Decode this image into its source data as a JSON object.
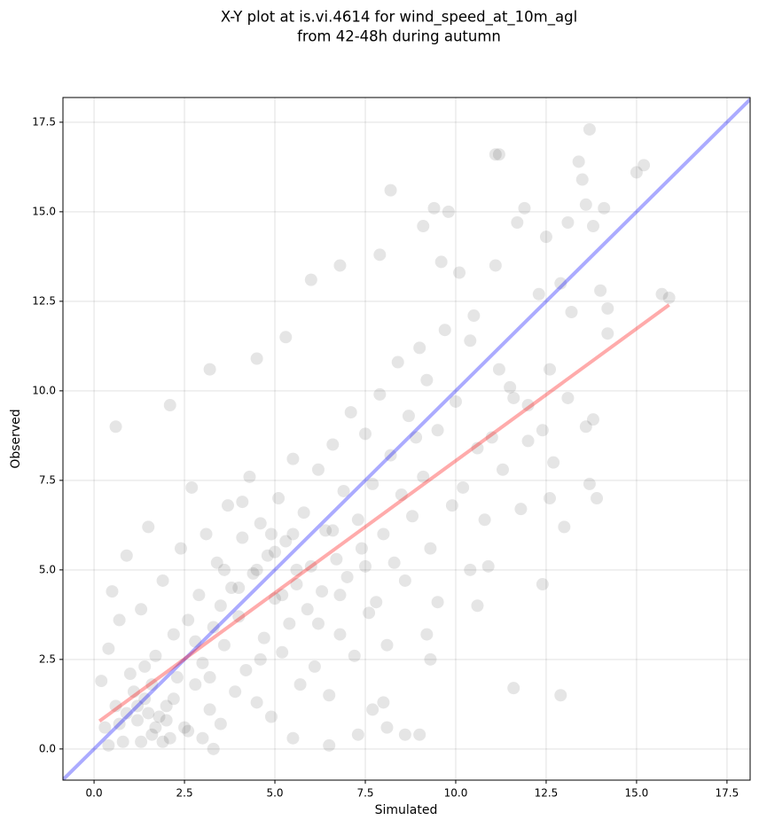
{
  "chart_data": {
    "type": "scatter",
    "title": [
      "X-Y plot at is.vi.4614 for wind_speed_at_10m_agl",
      "from 42-48h during autumn"
    ],
    "x_label": "Simulated",
    "y_label": "Observed",
    "xlim": [
      -0.86,
      18.14
    ],
    "ylim": [
      -0.87,
      18.19
    ],
    "xticks": [
      {
        "value": 0,
        "label": "0.0"
      },
      2.5,
      {
        "value": 5,
        "label": "5.0"
      },
      7.5,
      {
        "value": 10,
        "label": "10.0"
      },
      12.5,
      {
        "value": 15,
        "label": "15.0"
      },
      17.5
    ],
    "yticks": [
      {
        "value": 0,
        "label": "0.0"
      },
      2.5,
      {
        "value": 5,
        "label": "5.0"
      },
      7.5,
      {
        "value": 10,
        "label": "10.0"
      },
      12.5,
      {
        "value": 15,
        "label": "15.0"
      },
      17.5
    ],
    "grid": true,
    "series": [
      {
        "color": "#000000",
        "x": [
          0.6,
          2.1,
          3.2,
          4.5,
          5.3,
          6.0,
          6.8,
          7.9,
          8.2,
          9.1,
          9.4,
          9.6,
          9.8,
          10.1,
          10.5,
          11.1,
          11.2,
          11.1,
          11.7,
          11.9,
          12.3,
          12.5,
          12.9,
          13.1,
          13.4,
          13.5,
          13.6,
          13.7,
          13.8,
          14.1,
          14.2,
          15.0,
          15.2,
          15.7,
          15.9,
          14.2,
          14.0,
          13.2,
          13.6,
          13.8,
          13.7,
          13.9,
          13.0,
          12.4,
          11.6,
          12.9,
          12.6,
          12.7,
          11.8,
          11.5,
          11.2,
          12.0,
          12.6,
          13.1,
          10.9,
          10.6,
          10.4,
          9.3,
          9.2,
          9.5,
          9.0,
          8.6,
          8.1,
          8.0,
          7.7,
          7.3,
          6.5,
          3.3,
          5.5,
          0.2,
          0.3,
          0.4,
          0.5,
          0.6,
          0.7,
          0.8,
          0.9,
          1.0,
          1.1,
          1.2,
          1.3,
          1.4,
          1.5,
          1.6,
          1.7,
          1.8,
          1.9,
          2.0,
          2.1,
          2.2,
          2.3,
          2.4,
          2.5,
          2.6,
          2.7,
          2.8,
          2.9,
          3.0,
          3.1,
          3.2,
          3.3,
          3.4,
          3.5,
          3.6,
          3.7,
          3.8,
          3.9,
          4.0,
          4.1,
          4.2,
          4.3,
          4.4,
          4.5,
          4.6,
          4.7,
          4.8,
          4.9,
          5.0,
          5.1,
          5.2,
          5.3,
          5.4,
          5.5,
          5.6,
          5.7,
          5.8,
          5.9,
          6.0,
          6.1,
          6.2,
          6.3,
          6.4,
          6.5,
          6.6,
          6.7,
          6.8,
          6.9,
          7.0,
          7.1,
          7.2,
          7.3,
          7.4,
          7.5,
          7.6,
          7.7,
          7.8,
          7.9,
          8.0,
          8.1,
          8.2,
          8.3,
          8.4,
          8.5,
          8.6,
          8.7,
          8.8,
          8.9,
          9.0,
          9.1,
          9.2,
          9.3,
          9.5,
          9.7,
          9.9,
          10.0,
          10.2,
          10.4,
          10.6,
          10.8,
          11.0,
          11.3,
          11.6,
          12.0,
          12.4,
          0.4,
          0.9,
          1.3,
          1.5,
          1.7,
          1.9,
          2.0,
          1.2,
          1.6,
          2.2,
          0.7,
          1.4,
          2.6,
          3.0,
          2.8,
          3.5,
          4.0,
          4.5,
          5.0,
          5.5,
          3.2,
          4.6,
          5.2,
          6.2,
          6.8,
          7.5,
          4.1,
          4.9,
          5.6,
          6.6,
          3.6
        ],
        "values": [
          9.0,
          9.6,
          10.6,
          10.9,
          11.5,
          13.1,
          13.5,
          13.8,
          15.6,
          14.6,
          15.1,
          13.6,
          15.0,
          13.3,
          12.1,
          16.6,
          16.6,
          13.5,
          14.7,
          15.1,
          12.7,
          14.3,
          13.0,
          14.7,
          16.4,
          15.9,
          15.2,
          17.3,
          14.6,
          15.1,
          12.3,
          16.1,
          16.3,
          12.7,
          12.6,
          11.6,
          12.8,
          12.2,
          9.0,
          9.2,
          7.4,
          7.0,
          6.2,
          4.6,
          1.7,
          1.5,
          7.0,
          8.0,
          6.7,
          10.1,
          10.6,
          9.6,
          10.6,
          9.8,
          5.1,
          4.0,
          5.0,
          2.5,
          3.2,
          4.1,
          0.4,
          0.4,
          0.6,
          1.3,
          1.1,
          0.4,
          0.1,
          0.0,
          0.3,
          1.9,
          0.6,
          2.8,
          4.4,
          1.2,
          3.6,
          0.2,
          5.4,
          2.1,
          1.6,
          0.8,
          3.9,
          1.4,
          6.2,
          0.4,
          2.6,
          0.9,
          4.7,
          1.2,
          0.3,
          3.2,
          2.0,
          5.6,
          0.6,
          3.6,
          7.3,
          1.8,
          4.3,
          2.4,
          6.0,
          1.1,
          3.4,
          5.2,
          0.7,
          2.9,
          6.8,
          4.5,
          1.6,
          3.7,
          5.9,
          2.2,
          7.6,
          4.9,
          1.3,
          6.3,
          3.1,
          5.4,
          0.9,
          4.2,
          7.0,
          2.7,
          5.8,
          3.5,
          8.1,
          4.6,
          1.8,
          6.6,
          3.9,
          5.1,
          2.3,
          7.8,
          4.4,
          6.1,
          1.5,
          8.5,
          5.3,
          3.2,
          7.2,
          4.8,
          9.4,
          2.6,
          6.4,
          5.6,
          8.8,
          3.8,
          7.4,
          4.1,
          9.9,
          6.0,
          2.9,
          8.2,
          5.2,
          10.8,
          7.1,
          4.7,
          9.3,
          6.5,
          8.7,
          11.2,
          7.6,
          10.3,
          5.6,
          8.9,
          11.7,
          6.8,
          9.7,
          7.3,
          11.4,
          8.4,
          6.4,
          8.7,
          7.8,
          9.8,
          8.6,
          8.9,
          0.1,
          1.0,
          0.2,
          1.0,
          0.6,
          0.2,
          0.8,
          1.2,
          1.8,
          1.4,
          0.7,
          2.3,
          0.5,
          0.3,
          3.0,
          4.0,
          4.5,
          5.0,
          5.5,
          6.0,
          2.0,
          2.5,
          4.3,
          3.5,
          4.3,
          5.1,
          6.9,
          6.0,
          5.0,
          6.1,
          5.0
        ]
      },
      {
        "type": "line",
        "color": "#0000ff",
        "x": [
          -0.86,
          18.14
        ],
        "values": [
          -0.86,
          18.14
        ]
      },
      {
        "type": "line",
        "color": "#ff0000",
        "x": [
          0.15,
          15.9
        ],
        "values": [
          0.78,
          12.4
        ]
      }
    ]
  }
}
